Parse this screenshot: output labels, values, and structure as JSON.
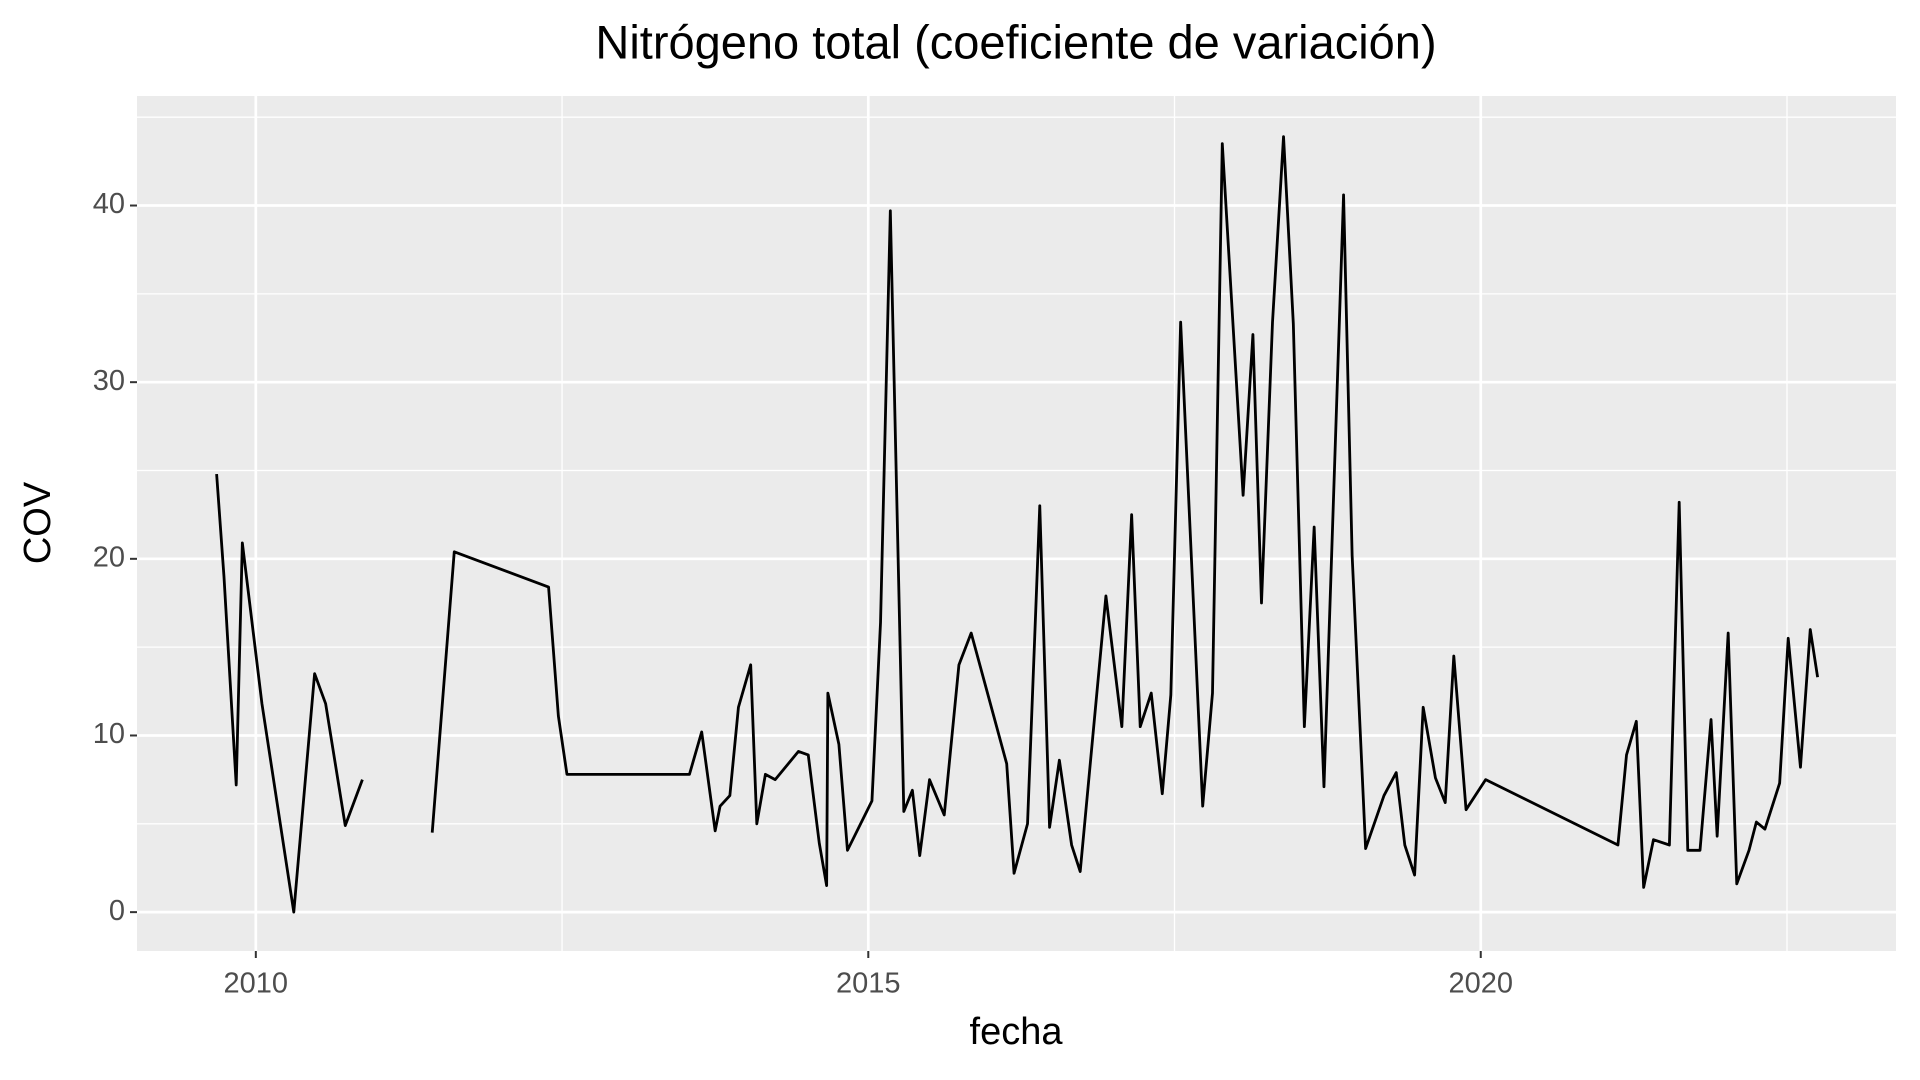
{
  "chart_data": {
    "type": "line",
    "title": "Nitrógeno total (coeficiente de variación)",
    "x_label": "fecha",
    "y_label": "COV",
    "x": [
      2009.68,
      2009.74,
      2009.84,
      2009.89,
      2010.05,
      2010.31,
      2010.48,
      2010.57,
      2010.73,
      2010.87,
      null,
      2011.44,
      2011.62,
      2012.39,
      2012.47,
      2012.54,
      2013.54,
      2013.64,
      2013.75,
      2013.79,
      2013.87,
      2013.94,
      2014.04,
      2014.09,
      2014.16,
      2014.24,
      2014.43,
      2014.51,
      2014.6,
      2014.66,
      2014.67,
      2014.76,
      2014.83,
      2015.03,
      2015.1,
      2015.18,
      2015.29,
      2015.36,
      2015.42,
      2015.5,
      2015.62,
      2015.74,
      2015.84,
      2016.13,
      2016.19,
      2016.3,
      2016.4,
      2016.48,
      2016.56,
      2016.66,
      2016.73,
      2016.94,
      2017.07,
      2017.15,
      2017.22,
      2017.31,
      2017.4,
      2017.47,
      2017.55,
      2017.73,
      2017.81,
      2017.89,
      2018.06,
      2018.14,
      2018.21,
      2018.3,
      2018.39,
      2018.47,
      2018.56,
      2018.64,
      2018.72,
      2018.88,
      2018.95,
      2019.06,
      2019.13,
      2019.21,
      2019.31,
      2019.38,
      2019.46,
      2019.53,
      2019.63,
      2019.71,
      2019.78,
      2019.88,
      2020.04,
      2021.12,
      2021.19,
      2021.27,
      2021.33,
      2021.41,
      2021.54,
      2021.62,
      2021.69,
      2021.79,
      2021.88,
      2021.93,
      2022.02,
      2022.09,
      2022.19,
      2022.25,
      2022.32,
      2022.44,
      2022.51,
      2022.61,
      2022.69,
      2022.75
    ],
    "series": [
      {
        "name": "COV",
        "color": "#000000",
        "values": [
          24.8,
          19.0,
          7.2,
          20.9,
          11.8,
          0,
          13.5,
          11.8,
          4.9,
          7.5,
          null,
          4.5,
          20.4,
          18.4,
          11.1,
          7.8,
          7.8,
          10.2,
          4.6,
          6.0,
          6.6,
          11.6,
          14.0,
          5.0,
          7.8,
          7.5,
          9.1,
          8.9,
          3.9,
          1.5,
          12.4,
          9.5,
          3.5,
          6.3,
          16.4,
          39.7,
          5.7,
          6.9,
          3.2,
          7.5,
          5.5,
          14.0,
          15.8,
          8.4,
          2.2,
          5.0,
          23.0,
          4.8,
          8.6,
          3.8,
          2.3,
          17.9,
          10.5,
          22.5,
          10.5,
          12.4,
          6.7,
          12.3,
          33.4,
          6.0,
          12.4,
          43.5,
          23.6,
          32.7,
          17.5,
          33.4,
          43.9,
          33.3,
          10.5,
          21.8,
          7.1,
          40.6,
          20.2,
          3.6,
          5.0,
          6.6,
          7.9,
          3.8,
          2.1,
          11.6,
          7.6,
          6.2,
          14.5,
          5.8,
          7.5,
          3.8,
          8.9,
          10.8,
          1.4,
          4.1,
          3.8,
          23.2,
          3.5,
          3.5,
          10.9,
          4.3,
          15.8,
          1.6,
          3.5,
          5.1,
          4.7,
          7.3,
          15.5,
          8.2,
          16.0,
          13.3
        ]
      }
    ],
    "xlim": [
      2009.03,
      2023.39
    ],
    "xticks": [
      2010,
      2015,
      2020
    ],
    "ylim": [
      -2.2,
      46.2
    ],
    "yticks": [
      0,
      10,
      20,
      30,
      40
    ],
    "grid": true
  }
}
